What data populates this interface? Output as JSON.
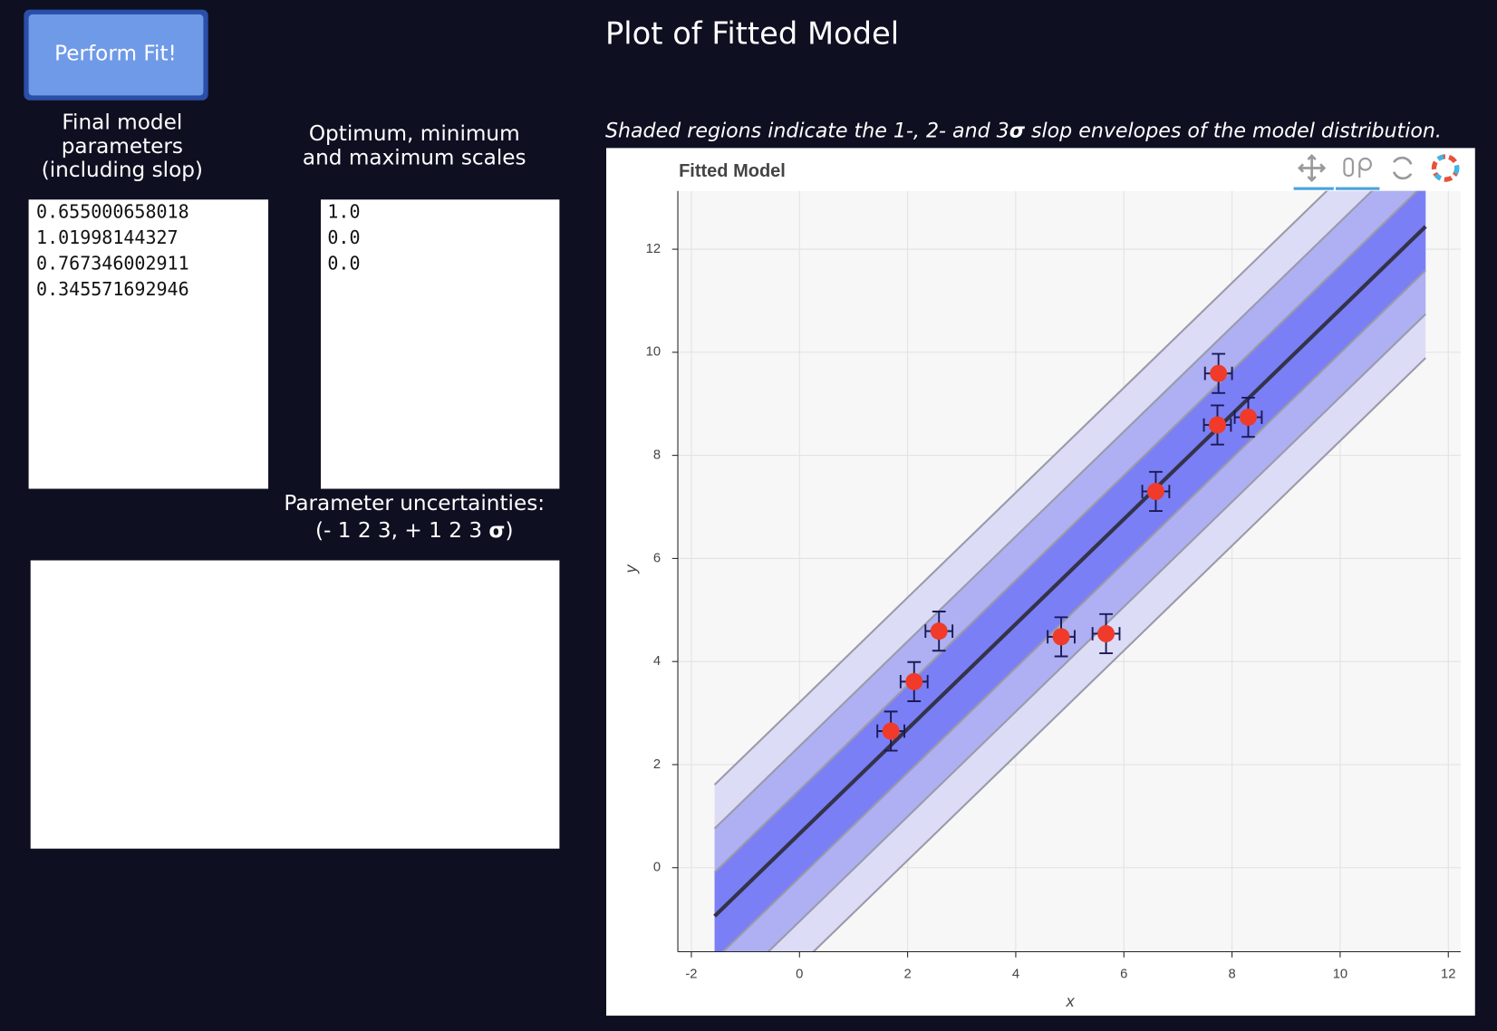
{
  "button": "Perform Fit!",
  "parameters_panel": {
    "label": [
      "Final model",
      "parameters",
      "(including slop)"
    ],
    "lines": [
      "0.655000658018",
      "1.01998144327",
      "0.767346002911",
      "0.345571692946"
    ]
  },
  "scales_panel": {
    "label": [
      "Optimum, minimum",
      "and maximum scales"
    ],
    "lines": [
      "1.0",
      "0.0",
      "0.0"
    ]
  },
  "uncertainties_panel": {
    "label": [
      "Parameter uncertainties:",
      "(- 1 2 3, + 1 2 3 ",
      "σ",
      ")"
    ]
  },
  "plot_heading": "Plot of Fitted Model",
  "caption": [
    "Shaded regions indicate the 1-, 2- and 3",
    "σ",
    " slop envelopes of the model distribution."
  ],
  "chart_data": {
    "type": "scatter",
    "title": "Fitted Model",
    "xlabel": "x",
    "ylabel": "y",
    "xlim": [
      -2.25,
      12.23
    ],
    "ylim": [
      -1.63,
      13.13
    ],
    "xticks": [
      -2,
      0,
      2,
      4,
      6,
      8,
      10,
      12
    ],
    "yticks": [
      0,
      2,
      4,
      6,
      8,
      10,
      12
    ],
    "grid": true,
    "points": {
      "color": "#f03a2a",
      "x": [
        1.69,
        2.12,
        2.58,
        4.84,
        5.67,
        6.59,
        7.73,
        7.75,
        8.3
      ],
      "y": [
        2.65,
        3.61,
        4.59,
        4.48,
        4.54,
        7.3,
        8.59,
        9.59,
        8.74
      ],
      "xerr": [
        0.25,
        0.25,
        0.25,
        0.25,
        0.25,
        0.25,
        0.25,
        0.25,
        0.25
      ],
      "yerr": [
        0.38,
        0.38,
        0.38,
        0.38,
        0.38,
        0.38,
        0.38,
        0.38,
        0.38
      ]
    },
    "model": {
      "color": "#33334a",
      "x": [
        -1.57,
        11.58
      ],
      "y": [
        -0.94,
        12.44
      ]
    },
    "bands": [
      {
        "color": "#dcdcf6",
        "x": [
          -1.57,
          11.58
        ],
        "upper": [
          1.61,
          14.99
        ],
        "lower": [
          -3.49,
          9.89
        ]
      },
      {
        "color": "#aeb0f3",
        "x": [
          -1.57,
          11.58
        ],
        "upper": [
          0.76,
          14.14
        ],
        "lower": [
          -2.64,
          10.74
        ]
      },
      {
        "color": "#7b7ff5",
        "x": [
          -1.57,
          11.58
        ],
        "upper": [
          -0.09,
          13.29
        ],
        "lower": [
          -1.79,
          11.59
        ]
      }
    ]
  }
}
